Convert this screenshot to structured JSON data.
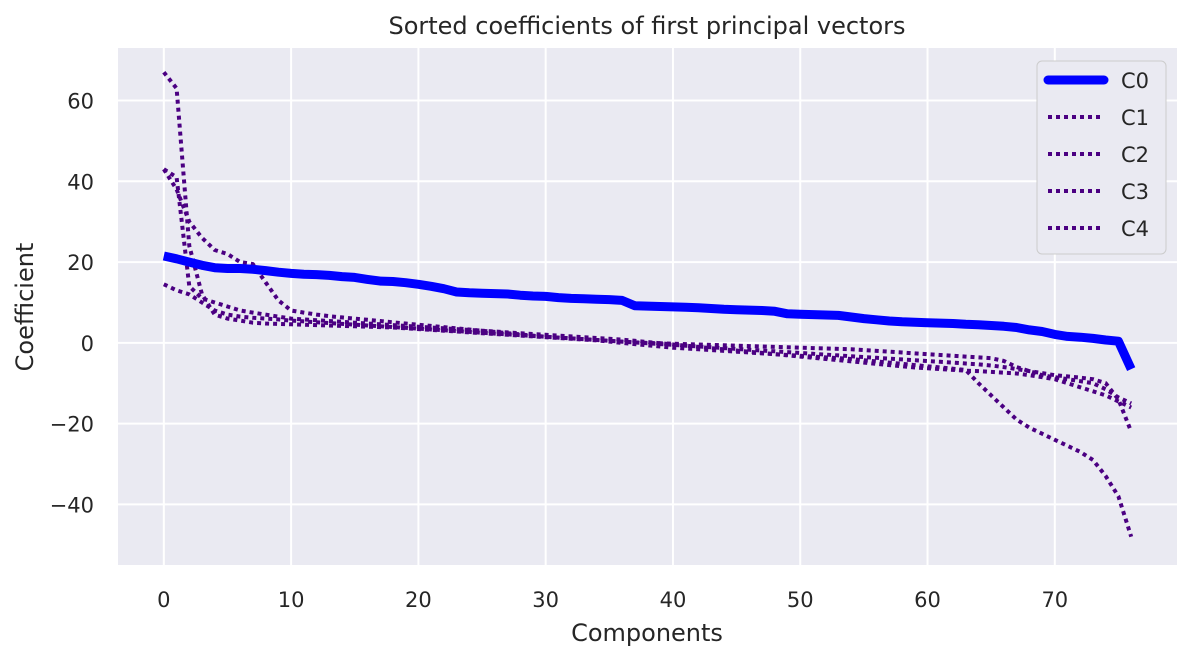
{
  "chart_data": {
    "type": "line",
    "title": "Sorted coefficients of first principal vectors",
    "xlabel": "Components",
    "ylabel": "Coefficient",
    "xlim": [
      -3.6,
      79.6
    ],
    "ylim": [
      -55,
      73
    ],
    "xticks": [
      0,
      10,
      20,
      30,
      40,
      50,
      60,
      70
    ],
    "yticks": [
      -40,
      -20,
      0,
      20,
      40,
      60
    ],
    "ytick_labels": [
      "−40",
      "−20",
      "0",
      "20",
      "40",
      "60"
    ],
    "grid": true,
    "legend_position": "top-right",
    "colors": {
      "C0": "#0000ff",
      "dotted": "#4b0082",
      "plot_bg": "#eaeaf2",
      "grid": "#ffffff"
    },
    "series": [
      {
        "name": "C0",
        "style": "solid",
        "values": [
          21.5,
          20.8,
          20.0,
          19.2,
          18.6,
          18.4,
          18.4,
          18.2,
          17.9,
          17.5,
          17.2,
          17.0,
          16.9,
          16.7,
          16.4,
          16.2,
          15.7,
          15.3,
          15.2,
          14.9,
          14.5,
          14.0,
          13.4,
          12.6,
          12.4,
          12.3,
          12.2,
          12.1,
          11.8,
          11.6,
          11.5,
          11.2,
          11.0,
          10.9,
          10.8,
          10.7,
          10.5,
          9.2,
          9.1,
          9.0,
          8.9,
          8.8,
          8.7,
          8.5,
          8.3,
          8.2,
          8.1,
          8.0,
          7.8,
          7.2,
          7.1,
          7.0,
          6.9,
          6.8,
          6.4,
          6.0,
          5.7,
          5.4,
          5.2,
          5.1,
          5.0,
          4.9,
          4.8,
          4.6,
          4.5,
          4.3,
          4.1,
          3.8,
          3.2,
          2.8,
          2.1,
          1.6,
          1.4,
          1.1,
          0.7,
          0.4,
          -6.5
        ]
      },
      {
        "name": "C1",
        "style": "dotted",
        "values": [
          67.0,
          63.0,
          24.0,
          12.0,
          7.0,
          6.0,
          5.5,
          5.0,
          4.8,
          4.7,
          4.6,
          4.5,
          4.4,
          4.3,
          4.2,
          4.1,
          4.0,
          3.9,
          3.8,
          3.6,
          3.4,
          3.2,
          3.0,
          2.8,
          2.6,
          2.4,
          2.2,
          2.0,
          1.8,
          1.6,
          1.4,
          1.2,
          1.0,
          0.8,
          0.6,
          0.3,
          0.0,
          -0.3,
          -0.6,
          -0.9,
          -1.2,
          -1.4,
          -1.6,
          -1.8,
          -2.0,
          -2.2,
          -2.4,
          -2.6,
          -2.8,
          -3.0,
          -3.2,
          -3.4,
          -3.6,
          -3.8,
          -4.0,
          -4.3,
          -4.6,
          -4.9,
          -5.2,
          -5.5,
          -5.8,
          -6.1,
          -6.4,
          -6.7,
          -10.0,
          -13.0,
          -16.0,
          -19.0,
          -21.0,
          -22.5,
          -24.0,
          -25.5,
          -27.0,
          -29.0,
          -33.0,
          -38.0,
          -48.0
        ]
      },
      {
        "name": "C2",
        "style": "dotted",
        "values": [
          43.0,
          41.0,
          14.0,
          11.0,
          10.0,
          9.0,
          8.0,
          7.5,
          7.0,
          6.5,
          6.0,
          5.8,
          5.6,
          5.4,
          5.2,
          5.0,
          4.8,
          4.6,
          4.4,
          4.2,
          4.0,
          3.8,
          3.6,
          3.4,
          3.2,
          3.0,
          2.8,
          2.6,
          2.4,
          2.2,
          2.0,
          1.8,
          1.6,
          1.4,
          1.2,
          1.0,
          0.8,
          0.5,
          0.2,
          -0.1,
          -0.4,
          -0.7,
          -1.0,
          -1.3,
          -1.6,
          -1.9,
          -2.2,
          -2.5,
          -2.8,
          -3.1,
          -3.4,
          -3.7,
          -4.0,
          -4.3,
          -4.6,
          -4.9,
          -5.2,
          -5.5,
          -5.8,
          -6.1,
          -6.3,
          -6.5,
          -6.7,
          -6.9,
          -7.0,
          -7.2,
          -7.4,
          -7.6,
          -8.0,
          -8.5,
          -9.0,
          -10.0,
          -11.0,
          -12.0,
          -13.0,
          -14.5,
          -16.0
        ]
      },
      {
        "name": "C3",
        "style": "dotted",
        "values": [
          14.5,
          13.0,
          12.0,
          10.0,
          8.0,
          7.0,
          6.5,
          6.2,
          6.0,
          5.8,
          5.5,
          5.3,
          5.1,
          4.9,
          4.7,
          4.5,
          4.3,
          4.1,
          3.9,
          3.7,
          3.5,
          3.3,
          3.1,
          2.9,
          2.7,
          2.5,
          2.3,
          2.1,
          1.9,
          1.7,
          1.5,
          1.3,
          1.1,
          0.9,
          0.7,
          0.5,
          0.3,
          0.1,
          -0.1,
          -0.3,
          -0.5,
          -0.7,
          -0.9,
          -1.1,
          -1.3,
          -1.5,
          -1.7,
          -1.9,
          -2.1,
          -2.3,
          -2.5,
          -2.7,
          -2.9,
          -3.1,
          -3.3,
          -3.5,
          -3.7,
          -3.9,
          -4.1,
          -4.3,
          -4.5,
          -4.7,
          -4.9,
          -5.1,
          -5.3,
          -5.6,
          -6.0,
          -6.5,
          -7.0,
          -7.5,
          -8.0,
          -8.3,
          -8.6,
          -9.0,
          -10.0,
          -14.0,
          -22.0
        ]
      },
      {
        "name": "C4",
        "style": "dotted",
        "values": [
          43.0,
          38.0,
          30.0,
          26.0,
          23.0,
          22.0,
          20.0,
          19.5,
          15.0,
          10.5,
          8.0,
          7.5,
          7.0,
          6.6,
          6.3,
          6.0,
          5.7,
          5.4,
          5.1,
          4.8,
          4.5,
          4.2,
          3.9,
          3.6,
          3.3,
          3.0,
          2.7,
          2.4,
          2.1,
          1.8,
          1.5,
          1.3,
          1.1,
          0.9,
          0.7,
          0.5,
          0.3,
          0.1,
          0.0,
          -0.1,
          -0.2,
          -0.3,
          -0.4,
          -0.5,
          -0.6,
          -0.7,
          -0.8,
          -0.9,
          -1.0,
          -1.1,
          -1.2,
          -1.3,
          -1.4,
          -1.5,
          -1.6,
          -1.8,
          -2.0,
          -2.2,
          -2.4,
          -2.6,
          -2.8,
          -3.0,
          -3.2,
          -3.4,
          -3.6,
          -3.8,
          -4.5,
          -6.0,
          -7.0,
          -8.0,
          -8.5,
          -9.0,
          -9.5,
          -10.0,
          -11.5,
          -13.5,
          -15.0
        ]
      }
    ]
  }
}
